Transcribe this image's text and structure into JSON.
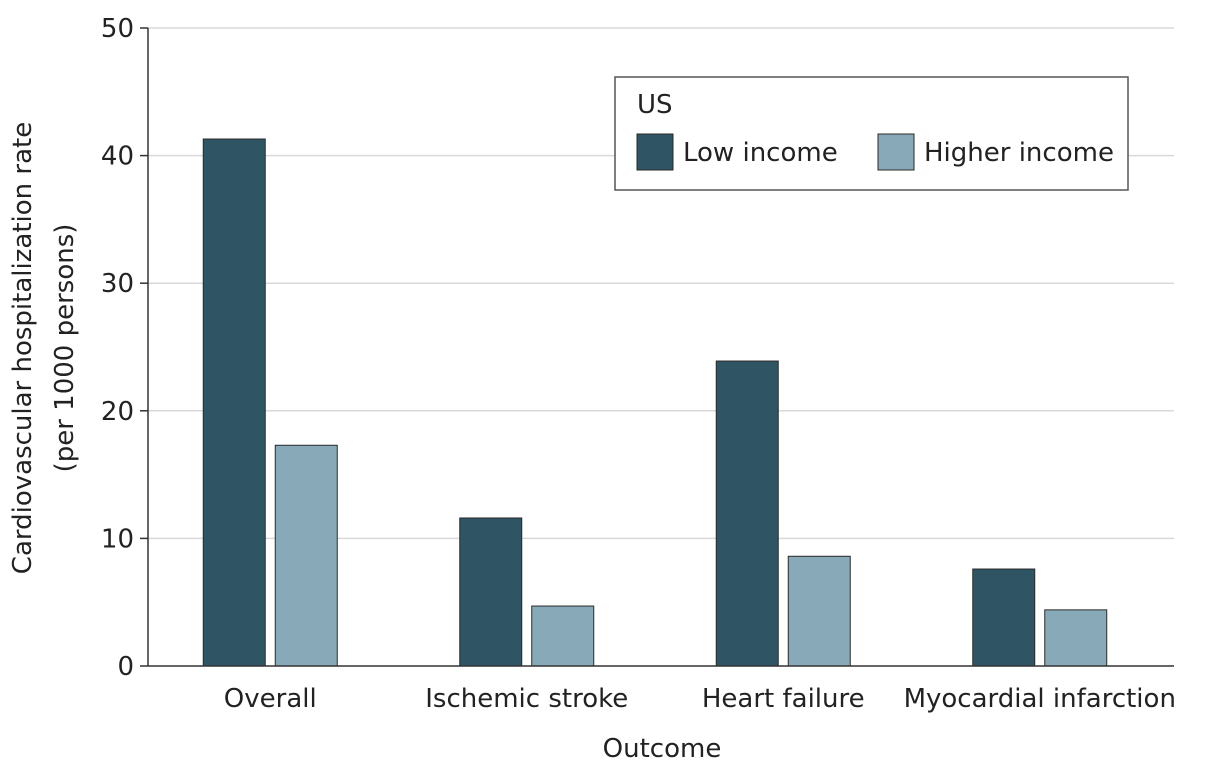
{
  "chart_data": {
    "type": "bar",
    "title": "",
    "xlabel": "Outcome",
    "ylabel_line1": "Cardiovascular hospitalization rate",
    "ylabel_line2": "(per 1000 persons)",
    "ylim": [
      0,
      50
    ],
    "yticks": [
      0,
      10,
      20,
      30,
      40,
      50
    ],
    "grid": true,
    "categories": [
      "Overall",
      "Ischemic stroke",
      "Heart failure",
      "Myocardial infarction"
    ],
    "legend": {
      "title": "US",
      "placement": "top-right"
    },
    "series": [
      {
        "name": "Low income",
        "color": "#2f5463",
        "values": [
          41.3,
          11.6,
          23.9,
          7.6
        ]
      },
      {
        "name": "Higher income",
        "color": "#88a9b8",
        "values": [
          17.3,
          4.7,
          8.6,
          4.4
        ]
      }
    ]
  }
}
